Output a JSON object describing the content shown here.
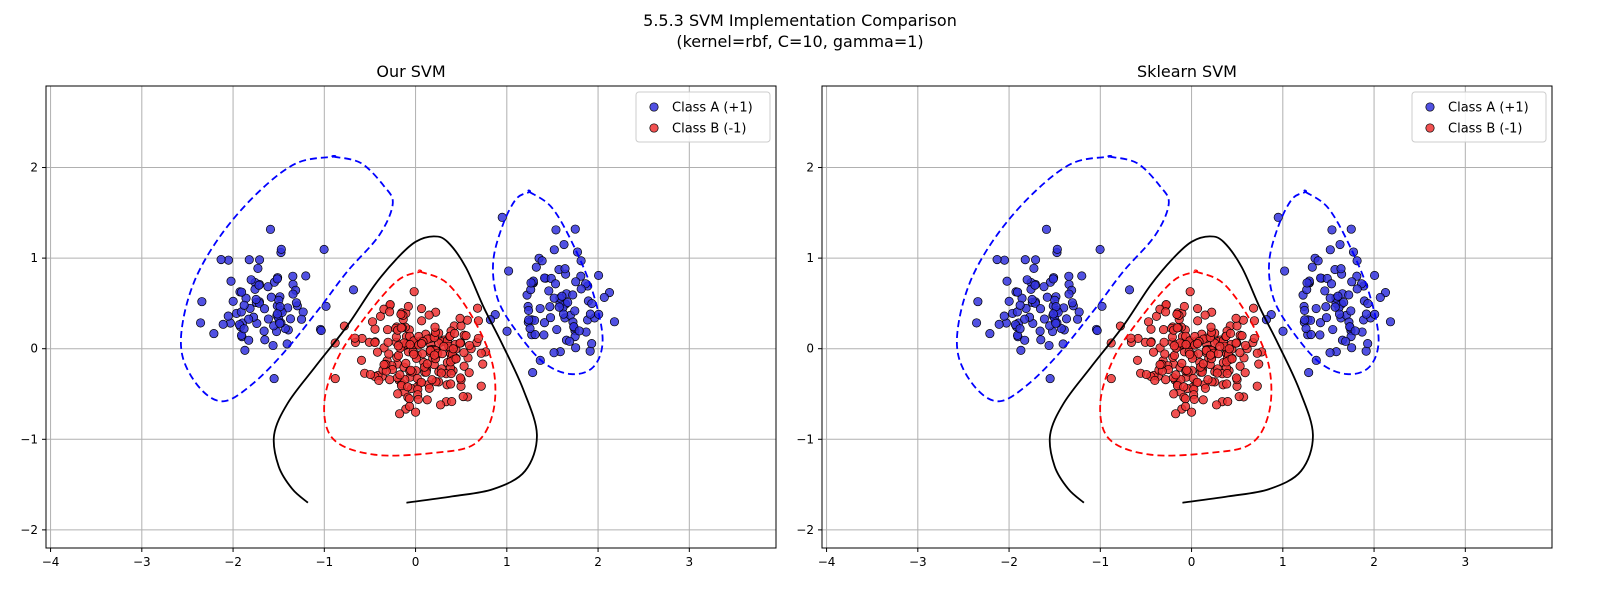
{
  "figure": {
    "suptitle_lines": [
      "5.5.3 SVM Implementation Comparison",
      "(kernel=rbf, C=10, gamma=1)"
    ]
  },
  "style": {
    "class_a_color": "#3333dd",
    "class_b_color": "#ee3333",
    "decision_boundary_color": "#000000",
    "margin_pos_color": "#0000ff",
    "margin_neg_color": "#ff0000",
    "grid_color": "#b0b0b0"
  },
  "chart_data": [
    {
      "type": "scatter",
      "title": "Our SVM",
      "xlabel": "",
      "ylabel": "",
      "xlim": [
        -4.05,
        3.95
      ],
      "ylim": [
        -2.2,
        2.9
      ],
      "xticks": [
        -4,
        -3,
        -2,
        -1,
        0,
        1,
        2,
        3
      ],
      "yticks": [
        -2,
        -1,
        0,
        1,
        2
      ],
      "grid": true,
      "legend": {
        "placement": "top-right",
        "entries": [
          "Class A (+1)",
          "Class B (-1)"
        ]
      },
      "clusters": [
        {
          "name": "Class A (+1)",
          "count": 85,
          "center": [
            -1.65,
            0.5
          ],
          "spread": [
            0.28,
            0.3
          ],
          "seed": 11
        },
        {
          "name": "Class A (+1)",
          "count": 85,
          "center": [
            1.55,
            0.45
          ],
          "spread": [
            0.25,
            0.28
          ],
          "seed": 23
        },
        {
          "name": "Class B (-1)",
          "count": 210,
          "center": [
            0.05,
            -0.05
          ],
          "spread": [
            0.3,
            0.28
          ],
          "seed": 37
        }
      ],
      "extra_points": [
        {
          "series": "Class A (+1)",
          "x": 0.95,
          "y": 1.45
        },
        {
          "series": "Class A (+1)",
          "x": 1.75,
          "y": 1.32
        },
        {
          "series": "Class A (+1)",
          "x": -1.55,
          "y": -0.33
        },
        {
          "series": "Class A (+1)",
          "x": -0.68,
          "y": 0.65
        },
        {
          "series": "Class A (+1)",
          "x": 0.82,
          "y": 0.32
        },
        {
          "series": "Class B (-1)",
          "x": -0.88,
          "y": -0.33
        },
        {
          "series": "Class B (-1)",
          "x": -0.78,
          "y": 0.25
        },
        {
          "series": "Class B (-1)",
          "x": 0.0,
          "y": -0.7
        },
        {
          "series": "Class B (-1)",
          "x": 0.72,
          "y": -0.05
        }
      ],
      "decision_boundary": [
        [
          -1.18,
          -1.7
        ],
        [
          -1.35,
          -1.55
        ],
        [
          -1.5,
          -1.3
        ],
        [
          -1.55,
          -0.95
        ],
        [
          -1.4,
          -0.6
        ],
        [
          -1.1,
          -0.2
        ],
        [
          -0.75,
          0.25
        ],
        [
          -0.45,
          0.7
        ],
        [
          -0.2,
          1.0
        ],
        [
          0.0,
          1.18
        ],
        [
          0.2,
          1.24
        ],
        [
          0.35,
          1.18
        ],
        [
          0.55,
          0.9
        ],
        [
          0.75,
          0.45
        ],
        [
          0.95,
          0.05
        ],
        [
          1.18,
          -0.45
        ],
        [
          1.33,
          -0.95
        ],
        [
          1.2,
          -1.35
        ],
        [
          0.85,
          -1.55
        ],
        [
          0.4,
          -1.63
        ],
        [
          -0.1,
          -1.7
        ]
      ],
      "margin_pos_left": [
        [
          -0.9,
          2.12
        ],
        [
          -0.6,
          2.05
        ],
        [
          -0.35,
          1.8
        ],
        [
          -0.25,
          1.6
        ],
        [
          -0.4,
          1.25
        ],
        [
          -0.75,
          0.85
        ],
        [
          -1.05,
          0.45
        ],
        [
          -1.45,
          -0.05
        ],
        [
          -1.8,
          -0.4
        ],
        [
          -2.1,
          -0.58
        ],
        [
          -2.35,
          -0.45
        ],
        [
          -2.55,
          -0.1
        ],
        [
          -2.55,
          0.3
        ],
        [
          -2.4,
          0.8
        ],
        [
          -2.1,
          1.3
        ],
        [
          -1.7,
          1.75
        ],
        [
          -1.3,
          2.05
        ],
        [
          -0.9,
          2.12
        ]
      ],
      "margin_pos_right": [
        [
          1.25,
          1.73
        ],
        [
          1.5,
          1.55
        ],
        [
          1.75,
          1.1
        ],
        [
          1.95,
          0.6
        ],
        [
          2.05,
          0.1
        ],
        [
          1.95,
          -0.2
        ],
        [
          1.7,
          -0.28
        ],
        [
          1.4,
          -0.15
        ],
        [
          1.1,
          0.2
        ],
        [
          0.9,
          0.55
        ],
        [
          0.85,
          0.95
        ],
        [
          0.95,
          1.35
        ],
        [
          1.1,
          1.65
        ],
        [
          1.25,
          1.73
        ]
      ],
      "margin_neg": [
        [
          0.05,
          0.85
        ],
        [
          0.35,
          0.72
        ],
        [
          0.65,
          0.3
        ],
        [
          0.85,
          -0.2
        ],
        [
          0.85,
          -0.7
        ],
        [
          0.65,
          -1.05
        ],
        [
          0.2,
          -1.15
        ],
        [
          -0.45,
          -1.17
        ],
        [
          -0.9,
          -1.0
        ],
        [
          -1.0,
          -0.6
        ],
        [
          -0.85,
          -0.1
        ],
        [
          -0.55,
          0.35
        ],
        [
          -0.2,
          0.75
        ],
        [
          0.05,
          0.85
        ]
      ]
    },
    {
      "type": "scatter",
      "title": "Sklearn SVM",
      "xlabel": "",
      "ylabel": "",
      "xlim": [
        -4.05,
        3.95
      ],
      "ylim": [
        -2.2,
        2.9
      ],
      "xticks": [
        -4,
        -3,
        -2,
        -1,
        0,
        1,
        2,
        3
      ],
      "yticks": [
        -2,
        -1,
        0,
        1,
        2
      ],
      "grid": true,
      "legend": {
        "placement": "top-right",
        "entries": [
          "Class A (+1)",
          "Class B (-1)"
        ]
      },
      "clusters": [
        {
          "name": "Class A (+1)",
          "count": 85,
          "center": [
            -1.65,
            0.5
          ],
          "spread": [
            0.28,
            0.3
          ],
          "seed": 11
        },
        {
          "name": "Class A (+1)",
          "count": 85,
          "center": [
            1.55,
            0.45
          ],
          "spread": [
            0.25,
            0.28
          ],
          "seed": 23
        },
        {
          "name": "Class B (-1)",
          "count": 210,
          "center": [
            0.05,
            -0.05
          ],
          "spread": [
            0.3,
            0.28
          ],
          "seed": 37
        }
      ],
      "extra_points": [
        {
          "series": "Class A (+1)",
          "x": 0.95,
          "y": 1.45
        },
        {
          "series": "Class A (+1)",
          "x": 1.75,
          "y": 1.32
        },
        {
          "series": "Class A (+1)",
          "x": -1.55,
          "y": -0.33
        },
        {
          "series": "Class A (+1)",
          "x": -0.68,
          "y": 0.65
        },
        {
          "series": "Class A (+1)",
          "x": 0.82,
          "y": 0.32
        },
        {
          "series": "Class B (-1)",
          "x": -0.88,
          "y": -0.33
        },
        {
          "series": "Class B (-1)",
          "x": -0.78,
          "y": 0.25
        },
        {
          "series": "Class B (-1)",
          "x": 0.0,
          "y": -0.7
        },
        {
          "series": "Class B (-1)",
          "x": 0.72,
          "y": -0.05
        }
      ],
      "decision_boundary": [
        [
          -1.18,
          -1.7
        ],
        [
          -1.35,
          -1.55
        ],
        [
          -1.5,
          -1.3
        ],
        [
          -1.55,
          -0.95
        ],
        [
          -1.4,
          -0.6
        ],
        [
          -1.1,
          -0.2
        ],
        [
          -0.75,
          0.25
        ],
        [
          -0.45,
          0.7
        ],
        [
          -0.2,
          1.0
        ],
        [
          0.0,
          1.18
        ],
        [
          0.2,
          1.24
        ],
        [
          0.35,
          1.18
        ],
        [
          0.55,
          0.9
        ],
        [
          0.75,
          0.45
        ],
        [
          0.95,
          0.05
        ],
        [
          1.18,
          -0.45
        ],
        [
          1.33,
          -0.95
        ],
        [
          1.2,
          -1.35
        ],
        [
          0.85,
          -1.55
        ],
        [
          0.4,
          -1.63
        ],
        [
          -0.1,
          -1.7
        ]
      ],
      "margin_pos_left": [
        [
          -0.9,
          2.12
        ],
        [
          -0.6,
          2.05
        ],
        [
          -0.35,
          1.8
        ],
        [
          -0.25,
          1.6
        ],
        [
          -0.4,
          1.25
        ],
        [
          -0.75,
          0.85
        ],
        [
          -1.05,
          0.45
        ],
        [
          -1.45,
          -0.05
        ],
        [
          -1.8,
          -0.4
        ],
        [
          -2.1,
          -0.58
        ],
        [
          -2.35,
          -0.45
        ],
        [
          -2.55,
          -0.1
        ],
        [
          -2.55,
          0.3
        ],
        [
          -2.4,
          0.8
        ],
        [
          -2.1,
          1.3
        ],
        [
          -1.7,
          1.75
        ],
        [
          -1.3,
          2.05
        ],
        [
          -0.9,
          2.12
        ]
      ],
      "margin_pos_right": [
        [
          1.25,
          1.73
        ],
        [
          1.5,
          1.55
        ],
        [
          1.75,
          1.1
        ],
        [
          1.95,
          0.6
        ],
        [
          2.05,
          0.1
        ],
        [
          1.95,
          -0.2
        ],
        [
          1.7,
          -0.28
        ],
        [
          1.4,
          -0.15
        ],
        [
          1.1,
          0.2
        ],
        [
          0.9,
          0.55
        ],
        [
          0.85,
          0.95
        ],
        [
          0.95,
          1.35
        ],
        [
          1.1,
          1.65
        ],
        [
          1.25,
          1.73
        ]
      ],
      "margin_neg": [
        [
          0.05,
          0.85
        ],
        [
          0.35,
          0.72
        ],
        [
          0.65,
          0.3
        ],
        [
          0.85,
          -0.2
        ],
        [
          0.85,
          -0.7
        ],
        [
          0.65,
          -1.05
        ],
        [
          0.2,
          -1.15
        ],
        [
          -0.45,
          -1.17
        ],
        [
          -0.9,
          -1.0
        ],
        [
          -1.0,
          -0.6
        ],
        [
          -0.85,
          -0.1
        ],
        [
          -0.55,
          0.35
        ],
        [
          -0.2,
          0.75
        ],
        [
          0.05,
          0.85
        ]
      ]
    }
  ]
}
